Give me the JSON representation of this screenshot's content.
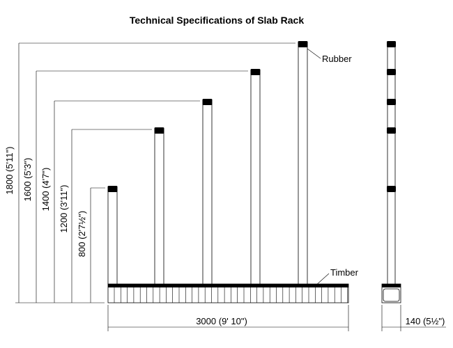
{
  "title": "Technical Specifications of Slab Rack",
  "labels": {
    "rubber": "Rubber",
    "timber": "Timber"
  },
  "dimensions": {
    "heights": [
      "1800 (5'11\")",
      "1600 (5'3\")",
      "1400 (4'7\")",
      "1200 (3'11\")",
      "800 (2'7½\")"
    ],
    "length": "3000 (9' 10\")",
    "width": "140 (5½\")"
  }
}
